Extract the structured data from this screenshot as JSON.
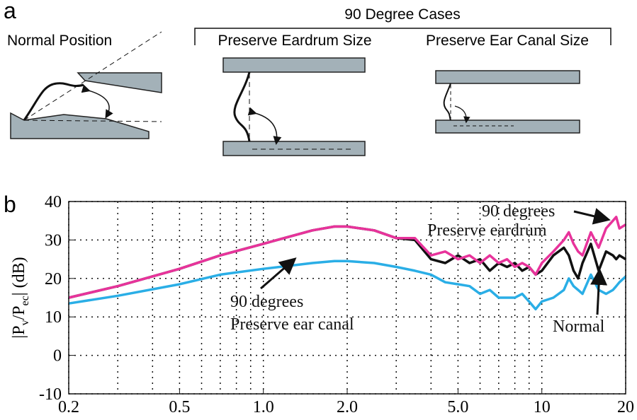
{
  "panel_labels": [
    "a",
    "b"
  ],
  "diagram": {
    "left_title": "Normal Position",
    "group_title": "90 Degree Cases",
    "middle_title": "Preserve Eardrum Size",
    "right_title": "Preserve Ear Canal Size"
  },
  "chart_data": {
    "type": "line",
    "ylabel_parts": [
      "|P",
      "v",
      "/P",
      "ec",
      "| (dB)"
    ],
    "xscale": "log",
    "grid": true,
    "x": [
      0.2,
      0.3,
      0.5,
      0.7,
      1.0,
      1.5,
      1.8,
      2.0,
      2.5,
      3.0,
      3.5,
      4.0,
      4.5,
      5.0,
      5.5,
      6.0,
      6.5,
      7.0,
      7.5,
      8.0,
      8.5,
      9.0,
      9.5,
      10,
      11,
      12,
      12.5,
      13,
      13.5,
      14,
      15,
      16,
      17,
      18,
      18.5,
      19,
      20
    ],
    "series": [
      {
        "color": "#e8339b",
        "values": [
          15,
          18,
          22.5,
          26,
          29,
          32.5,
          33.5,
          33.5,
          32.5,
          30.5,
          30.5,
          26,
          27,
          25,
          26,
          24,
          26,
          24,
          25,
          23,
          24,
          23,
          21,
          24,
          27,
          30,
          32,
          29,
          27,
          26,
          32,
          28,
          33,
          35,
          36,
          33,
          34
        ]
      },
      {
        "color": "#111111",
        "values": [
          15,
          18,
          22.5,
          26,
          29,
          32.5,
          33.5,
          33.5,
          32.5,
          30.5,
          30,
          25,
          24,
          26,
          24,
          25,
          22,
          24,
          23,
          24,
          22,
          23,
          21,
          22,
          26,
          28,
          26,
          22,
          20,
          24,
          29,
          22,
          27,
          26,
          25,
          26,
          25
        ]
      },
      {
        "color": "#2aaee6",
        "values": [
          13.5,
          15.5,
          18.5,
          21,
          22.5,
          24,
          24.5,
          24.5,
          24,
          23,
          22,
          21,
          19,
          18.5,
          18,
          16,
          17,
          15,
          15,
          15,
          16,
          14,
          12,
          14,
          15,
          17,
          20,
          18,
          17,
          16,
          21,
          17,
          16,
          17,
          18,
          19,
          20.5
        ]
      }
    ],
    "annotations": [
      "90 degrees",
      "Preserve eardrum",
      "90 degrees",
      "Preserve ear canal",
      "Normal"
    ],
    "xlim": [
      0.2,
      20
    ],
    "xticks": [
      0.2,
      0.5,
      {
        "value": 1,
        "label": "1.0"
      },
      {
        "value": 2,
        "label": "2.0"
      },
      {
        "value": 5,
        "label": "5.0"
      },
      10,
      20
    ],
    "x_minor_grid": [
      0.3,
      0.4,
      0.6,
      0.7,
      0.8,
      0.9,
      3,
      4,
      6,
      7,
      8,
      9
    ],
    "ylim": [
      -10,
      40
    ],
    "yticks": [
      -10,
      0,
      10,
      20,
      30,
      40
    ]
  }
}
